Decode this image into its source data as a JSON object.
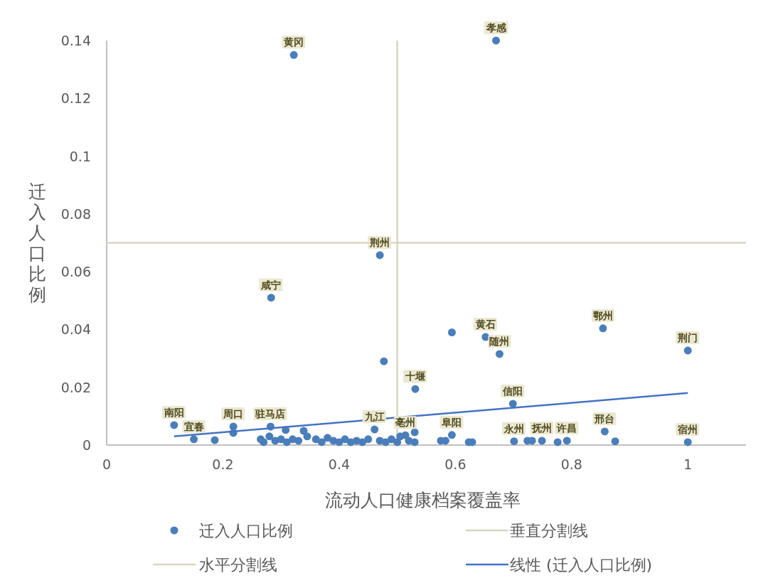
{
  "chart_data": {
    "type": "scatter",
    "xlabel": "流动人口健康档案覆盖率",
    "ylabel": "迁入人口比例",
    "xlim": [
      0,
      1.1
    ],
    "xticks": [
      0,
      0.2,
      0.4,
      0.6,
      0.8,
      1
    ],
    "ylim": [
      0,
      0.14
    ],
    "yticks": [
      0,
      0.02,
      0.04,
      0.06,
      0.08,
      0.1,
      0.12,
      0.14
    ],
    "legend": "bottom",
    "marker": "circle",
    "series": [
      {
        "name": "迁入人口比例",
        "color": "#4a7ebb",
        "x": [
          0.116,
          0.15,
          0.186,
          0.218,
          0.218,
          0.322,
          0.67,
          0.47,
          0.283,
          0.594,
          0.652,
          0.676,
          0.854,
          1.0,
          0.531,
          0.477,
          0.699,
          0.857,
          1.0,
          0.282,
          0.308,
          0.339,
          0.461,
          0.53,
          0.514,
          0.594,
          0.583,
          0.575,
          0.623,
          0.629,
          0.701,
          0.724,
          0.732,
          0.749,
          0.776,
          0.792,
          0.875,
          0.265,
          0.27,
          0.28,
          0.29,
          0.3,
          0.31,
          0.32,
          0.33,
          0.345,
          0.36,
          0.37,
          0.38,
          0.39,
          0.4,
          0.41,
          0.42,
          0.43,
          0.44,
          0.45,
          0.47,
          0.48,
          0.49,
          0.5,
          0.505,
          0.52,
          0.53
        ],
        "values": [
          0.0069,
          0.002,
          0.0017,
          0.0064,
          0.0042,
          0.135,
          0.14,
          0.0657,
          0.051,
          0.039,
          0.0374,
          0.0315,
          0.0404,
          0.0327,
          0.0194,
          0.029,
          0.0143,
          0.0047,
          0.001,
          0.0064,
          0.0052,
          0.0049,
          0.0054,
          0.0044,
          0.0034,
          0.0035,
          0.0015,
          0.0015,
          0.001,
          0.001,
          0.0013,
          0.0015,
          0.0015,
          0.0015,
          0.001,
          0.0015,
          0.0013,
          0.002,
          0.001,
          0.003,
          0.0015,
          0.002,
          0.001,
          0.002,
          0.0015,
          0.003,
          0.002,
          0.001,
          0.0025,
          0.0015,
          0.001,
          0.002,
          0.001,
          0.0015,
          0.001,
          0.002,
          0.0015,
          0.001,
          0.002,
          0.001,
          0.003,
          0.0015,
          0.001
        ]
      },
      {
        "name": "线性 (迁入人口比例)",
        "color": "#4472c4",
        "type": "line",
        "marker": "none",
        "x": [
          0.116,
          1.0
        ],
        "values": [
          0.003,
          0.018
        ]
      }
    ],
    "ref_lines": [
      {
        "axis": "x",
        "value": 0.5,
        "label": "垂直分割线",
        "color": "#d8d6c0"
      },
      {
        "axis": "y",
        "value": 0.07,
        "label": "水平分割线",
        "color": "#d8d6c0"
      }
    ],
    "annotations": [
      {
        "text": "南阳",
        "x": 0.116,
        "y": 0.0069
      },
      {
        "text": "宜春",
        "x": 0.15,
        "y": 0.002
      },
      {
        "text": "周口",
        "x": 0.218,
        "y": 0.0064
      },
      {
        "text": "驻马店",
        "x": 0.282,
        "y": 0.0064
      },
      {
        "text": "九江",
        "x": 0.461,
        "y": 0.0054
      },
      {
        "text": "亳州",
        "x": 0.514,
        "y": 0.0034
      },
      {
        "text": "阜阳",
        "x": 0.594,
        "y": 0.0035
      },
      {
        "text": "黄冈",
        "x": 0.322,
        "y": 0.135
      },
      {
        "text": "孝感",
        "x": 0.67,
        "y": 0.14
      },
      {
        "text": "荆州",
        "x": 0.47,
        "y": 0.0657
      },
      {
        "text": "咸宁",
        "x": 0.283,
        "y": 0.051
      },
      {
        "text": "黄石",
        "x": 0.652,
        "y": 0.0374
      },
      {
        "text": "随州",
        "x": 0.676,
        "y": 0.0315
      },
      {
        "text": "鄂州",
        "x": 0.854,
        "y": 0.0404
      },
      {
        "text": "荆门",
        "x": 1.0,
        "y": 0.0327
      },
      {
        "text": "十堰",
        "x": 0.531,
        "y": 0.0194
      },
      {
        "text": "信阳",
        "x": 0.699,
        "y": 0.0143
      },
      {
        "text": "永州",
        "x": 0.701,
        "y": 0.0013
      },
      {
        "text": "抚州",
        "x": 0.749,
        "y": 0.0015
      },
      {
        "text": "许昌",
        "x": 0.792,
        "y": 0.0015
      },
      {
        "text": "邢台",
        "x": 0.857,
        "y": 0.0047
      },
      {
        "text": "宿州",
        "x": 1.0,
        "y": 0.001
      }
    ]
  }
}
